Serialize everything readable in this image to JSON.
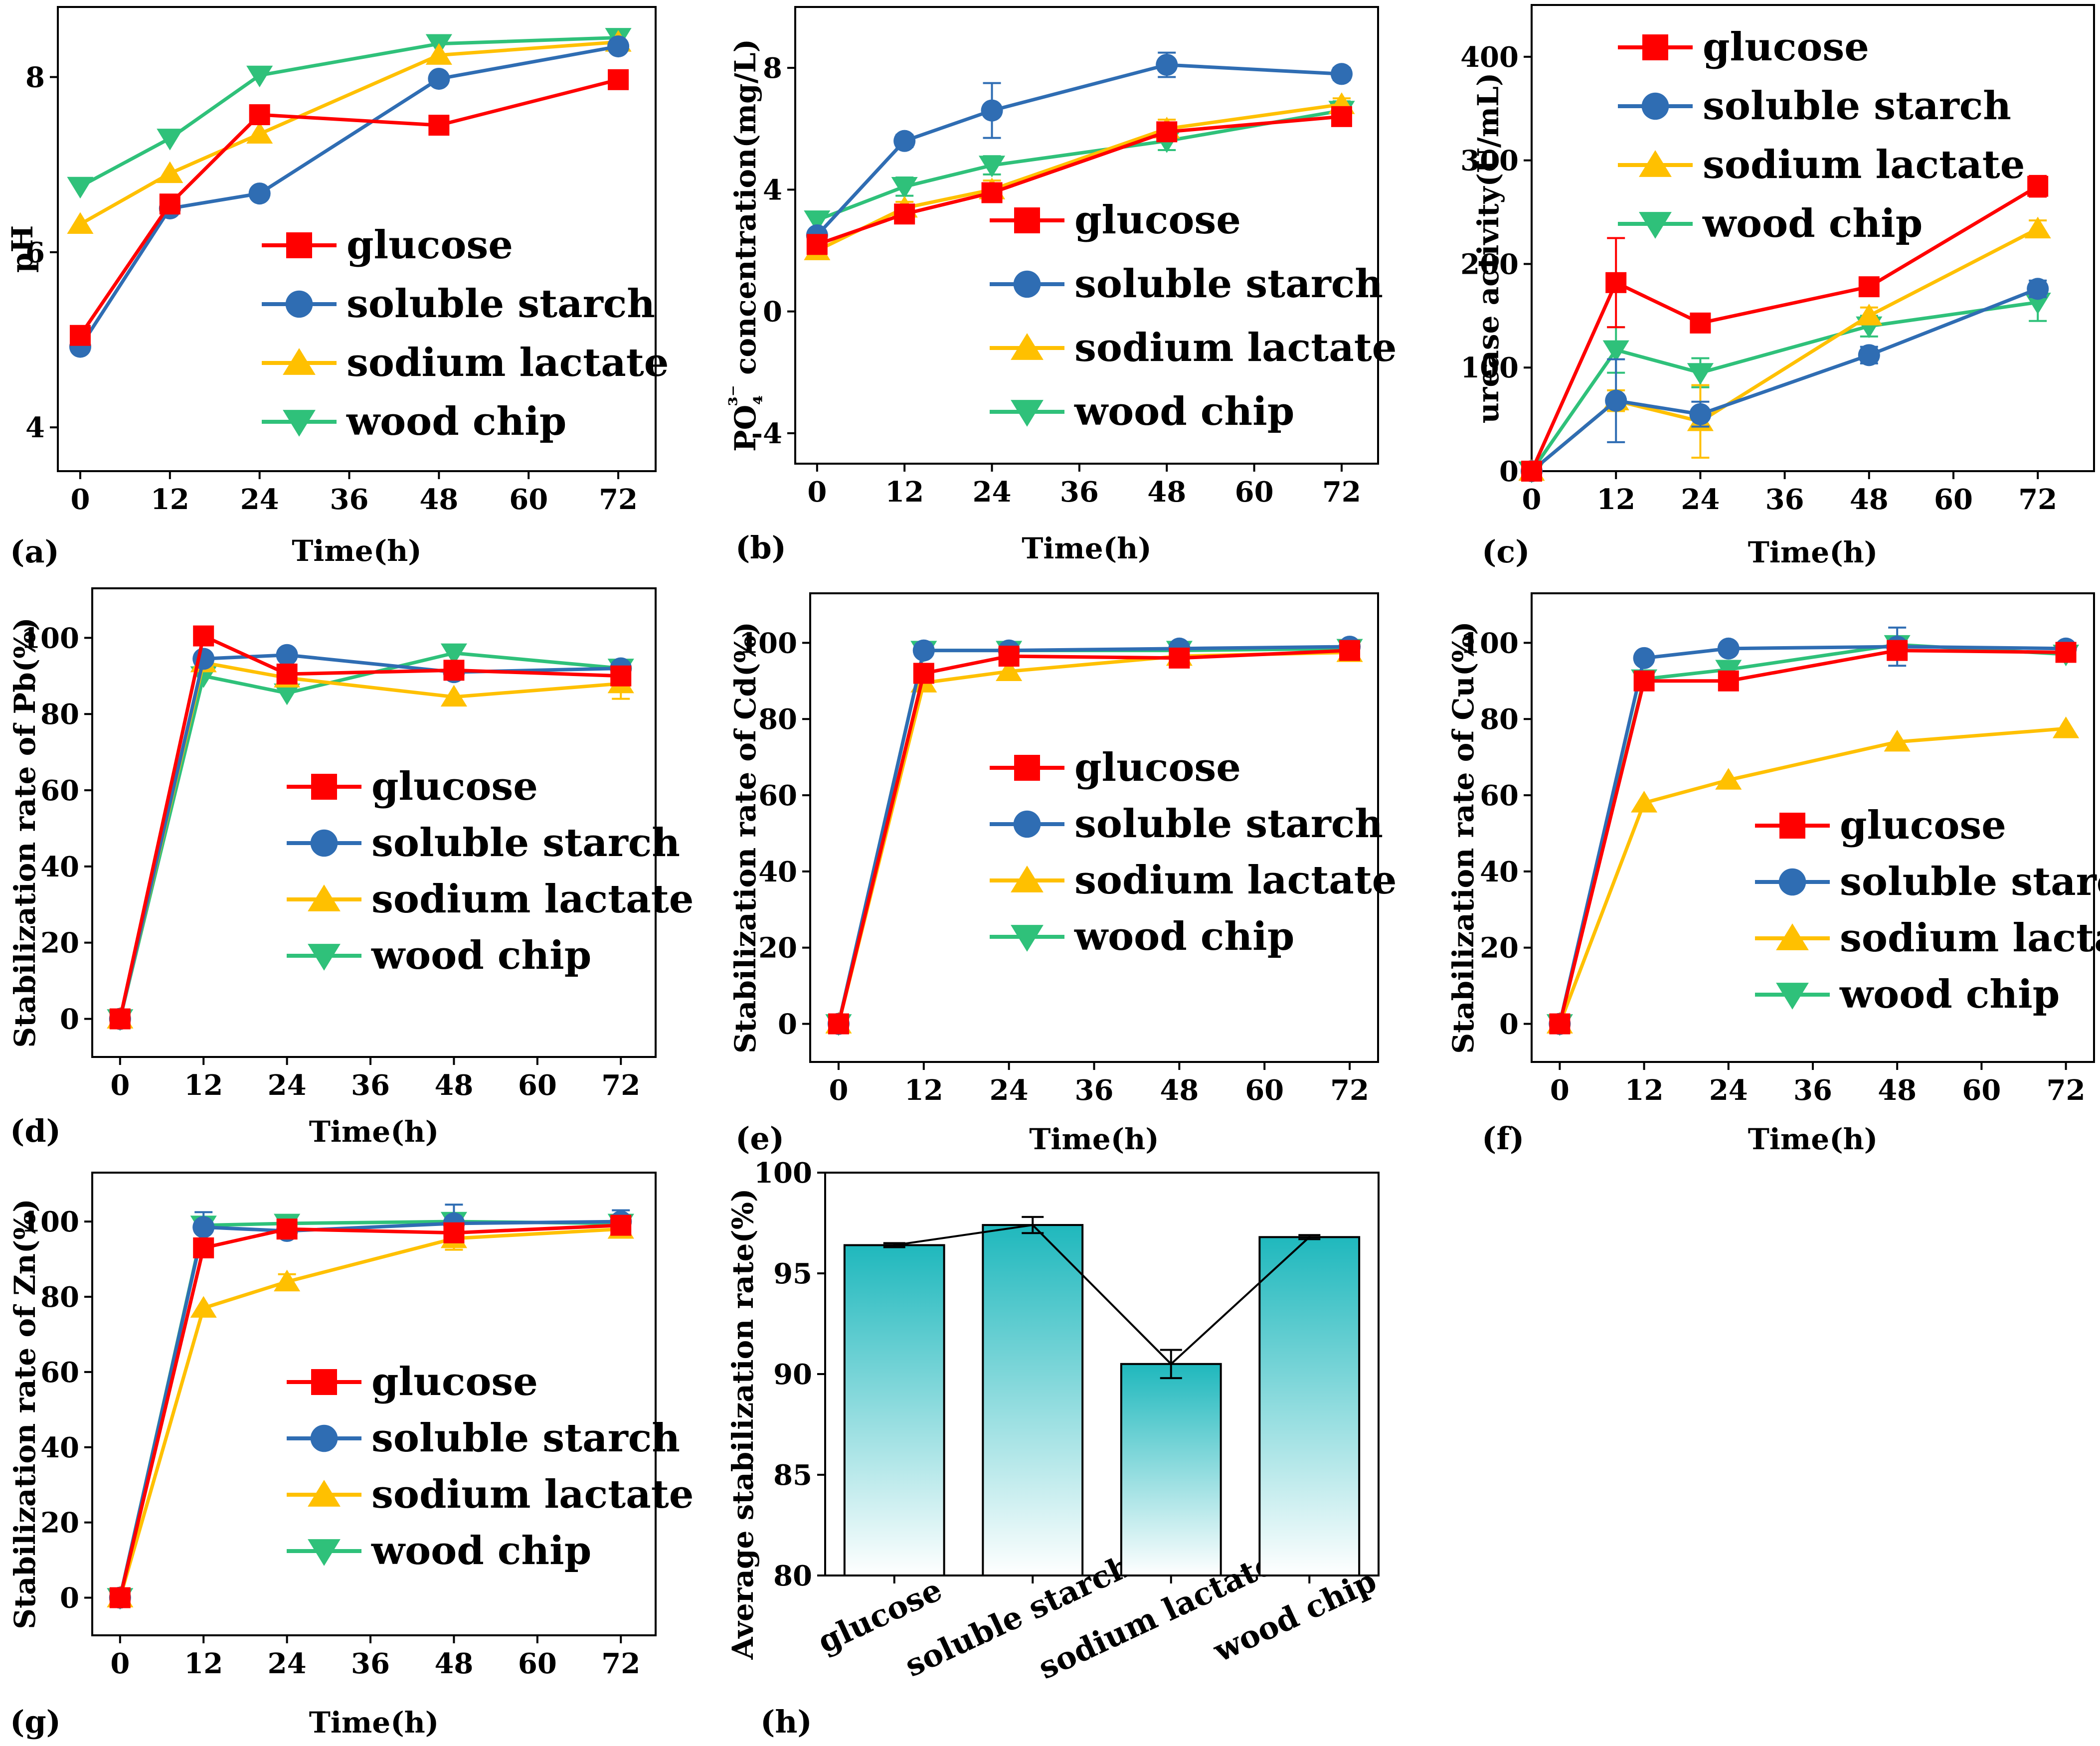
{
  "colors": {
    "glucose": "#ff0000",
    "soluble_starch": "#2f6db3",
    "sodium_lactate": "#ffc000",
    "wood_chip": "#2fc17a",
    "bar_top": "#1fb8bd",
    "axis": "#000000"
  },
  "series_names": [
    "glucose",
    "soluble starch",
    "sodium lactate",
    "wood chip"
  ],
  "chart_data": [
    {
      "id": "a",
      "panel_label": "(a)",
      "type": "line",
      "xlabel": "Time(h)",
      "ylabel": "pH",
      "xlim": [
        -3,
        77
      ],
      "ylim": [
        3.5,
        8.8
      ],
      "xticks": [
        0,
        12,
        24,
        36,
        48,
        60,
        72
      ],
      "yticks": [
        4,
        6,
        8
      ],
      "x": [
        0,
        12,
        24,
        48,
        72
      ],
      "legend": "center-right",
      "series": [
        {
          "name": "glucose",
          "values": [
            5.05,
            6.55,
            7.57,
            7.45,
            7.97
          ],
          "err": [
            0,
            0,
            0,
            0,
            0
          ]
        },
        {
          "name": "soluble starch",
          "values": [
            4.92,
            6.5,
            6.67,
            7.98,
            8.35
          ],
          "err": [
            0,
            0,
            0,
            0,
            0
          ]
        },
        {
          "name": "sodium lactate",
          "values": [
            6.32,
            6.9,
            7.35,
            8.25,
            8.4
          ],
          "err": [
            0,
            0,
            0,
            0,
            0
          ]
        },
        {
          "name": "wood chip",
          "values": [
            6.75,
            7.3,
            8.02,
            8.38,
            8.45
          ],
          "err": [
            0,
            0,
            0,
            0,
            0
          ]
        }
      ]
    },
    {
      "id": "b",
      "panel_label": "(b)",
      "type": "line",
      "xlabel": "Time(h)",
      "ylabel": "PO₄³⁻ concentration(mg/L)",
      "xlim": [
        -3,
        77
      ],
      "ylim": [
        -5,
        10
      ],
      "xticks": [
        0,
        12,
        24,
        36,
        48,
        60,
        72
      ],
      "yticks": [
        -4,
        0,
        4,
        8
      ],
      "x": [
        0,
        12,
        24,
        48,
        72
      ],
      "legend": "center-right",
      "series": [
        {
          "name": "glucose",
          "values": [
            2.2,
            3.2,
            3.9,
            5.9,
            6.4
          ],
          "err": [
            0,
            0.2,
            0.3,
            0.3,
            0.2
          ]
        },
        {
          "name": "soluble starch",
          "values": [
            2.5,
            5.6,
            6.6,
            8.1,
            7.8
          ],
          "err": [
            0,
            0.2,
            0.9,
            0.4,
            0.2
          ]
        },
        {
          "name": "sodium lactate",
          "values": [
            2.0,
            3.4,
            4.0,
            6.0,
            6.8
          ],
          "err": [
            0,
            0.2,
            0.3,
            0.3,
            0.2
          ]
        },
        {
          "name": "wood chip",
          "values": [
            3.0,
            4.1,
            4.8,
            5.6,
            6.6
          ],
          "err": [
            0,
            0.3,
            0.3,
            0.3,
            0.3
          ]
        }
      ]
    },
    {
      "id": "c",
      "panel_label": "(c)",
      "type": "line",
      "xlabel": "Time(h)",
      "ylabel": "urease activity(U/mL)",
      "xlim": [
        0,
        80
      ],
      "ylim": [
        0,
        450
      ],
      "xticks": [
        0,
        12,
        24,
        36,
        48,
        60,
        72
      ],
      "yticks": [
        0,
        100,
        200,
        300,
        400
      ],
      "x": [
        0,
        12,
        24,
        48,
        72
      ],
      "legend": "top-left",
      "series": [
        {
          "name": "glucose",
          "values": [
            0,
            182,
            143,
            178,
            275
          ],
          "err": [
            0,
            43,
            6,
            6,
            10
          ]
        },
        {
          "name": "soluble starch",
          "values": [
            0,
            68,
            55,
            112,
            176
          ],
          "err": [
            0,
            40,
            12,
            8,
            8
          ]
        },
        {
          "name": "sodium lactate",
          "values": [
            0,
            68,
            48,
            150,
            234
          ],
          "err": [
            0,
            10,
            35,
            8,
            8
          ]
        },
        {
          "name": "wood chip",
          "values": [
            0,
            117,
            95,
            140,
            163
          ],
          "err": [
            0,
            22,
            14,
            10,
            18
          ]
        }
      ]
    },
    {
      "id": "d",
      "panel_label": "(d)",
      "type": "line",
      "xlabel": "Time(h)",
      "ylabel": "Stabilization rate of Pb(%)",
      "xlim": [
        -4,
        77
      ],
      "ylim": [
        -10,
        113
      ],
      "xticks": [
        0,
        12,
        24,
        36,
        48,
        60,
        72
      ],
      "yticks": [
        0,
        20,
        40,
        60,
        80,
        100
      ],
      "x": [
        0,
        12,
        24,
        48,
        72
      ],
      "legend": "center",
      "series": [
        {
          "name": "glucose",
          "values": [
            0,
            100.5,
            90.5,
            91.5,
            90
          ],
          "err": [
            0,
            0,
            0,
            0,
            0
          ]
        },
        {
          "name": "soluble starch",
          "values": [
            0,
            94.5,
            95.5,
            91,
            92
          ],
          "err": [
            0,
            0,
            0,
            0,
            0
          ]
        },
        {
          "name": "sodium lactate",
          "values": [
            0,
            93.5,
            89.5,
            84.5,
            88
          ],
          "err": [
            0,
            0,
            0,
            0,
            4
          ]
        },
        {
          "name": "wood chip",
          "values": [
            0,
            90,
            85.5,
            96,
            92
          ],
          "err": [
            0,
            0,
            0,
            0,
            0
          ]
        }
      ]
    },
    {
      "id": "e",
      "panel_label": "(e)",
      "type": "line",
      "xlabel": "Time(h)",
      "ylabel": "Stabilization rate of Cd(%)",
      "xlim": [
        -4,
        76
      ],
      "ylim": [
        -10,
        113
      ],
      "xticks": [
        0,
        12,
        24,
        36,
        48,
        60,
        72
      ],
      "yticks": [
        0,
        20,
        40,
        60,
        80,
        100
      ],
      "x": [
        0,
        12,
        24,
        48,
        72
      ],
      "legend": "center",
      "series": [
        {
          "name": "glucose",
          "values": [
            0,
            92,
            96.5,
            96,
            98
          ],
          "err": [
            0,
            0,
            0,
            0,
            0
          ]
        },
        {
          "name": "soluble starch",
          "values": [
            0,
            98,
            98,
            98.5,
            99
          ],
          "err": [
            0,
            0,
            0,
            0,
            0
          ]
        },
        {
          "name": "sodium lactate",
          "values": [
            0,
            89.5,
            92.5,
            96.5,
            97.5
          ],
          "err": [
            0,
            0,
            0,
            0,
            0
          ]
        },
        {
          "name": "wood chip",
          "values": [
            0,
            98,
            98,
            98,
            98.5
          ],
          "err": [
            0,
            0,
            0,
            0,
            0
          ]
        }
      ]
    },
    {
      "id": "f",
      "panel_label": "(f)",
      "type": "line",
      "xlabel": "Time(h)",
      "ylabel": "Stabilization rate of Cu(%)",
      "xlim": [
        -4,
        76
      ],
      "ylim": [
        -10,
        113
      ],
      "xticks": [
        0,
        12,
        24,
        36,
        48,
        60,
        72
      ],
      "yticks": [
        0,
        20,
        40,
        60,
        80,
        100
      ],
      "x": [
        0,
        12,
        24,
        48,
        72
      ],
      "legend": "bottom-right",
      "series": [
        {
          "name": "glucose",
          "values": [
            0,
            90,
            90,
            98,
            97.5
          ],
          "err": [
            0,
            0,
            0,
            0,
            0
          ]
        },
        {
          "name": "soluble starch",
          "values": [
            0,
            96,
            98.5,
            99,
            98.5
          ],
          "err": [
            0,
            0,
            0,
            5,
            0
          ]
        },
        {
          "name": "sodium lactate",
          "values": [
            0,
            58,
            64,
            74,
            77.5
          ],
          "err": [
            0,
            0,
            0,
            0,
            0
          ]
        },
        {
          "name": "wood chip",
          "values": [
            0,
            90.5,
            93,
            99.5,
            97
          ],
          "err": [
            0,
            0,
            0,
            0,
            0
          ]
        }
      ]
    },
    {
      "id": "g",
      "panel_label": "(g)",
      "type": "line",
      "xlabel": "Time(h)",
      "ylabel": "Stabilization rate of Zn(%)",
      "xlim": [
        -4,
        77
      ],
      "ylim": [
        -10,
        113
      ],
      "xticks": [
        0,
        12,
        24,
        36,
        48,
        60,
        72
      ],
      "yticks": [
        0,
        20,
        40,
        60,
        80,
        100
      ],
      "x": [
        0,
        12,
        24,
        48,
        72
      ],
      "legend": "bottom-center",
      "series": [
        {
          "name": "glucose",
          "values": [
            0,
            93,
            98,
            97,
            99
          ],
          "err": [
            0,
            0,
            0,
            0,
            0
          ]
        },
        {
          "name": "soluble starch",
          "values": [
            0,
            98.5,
            97.5,
            99.5,
            100
          ],
          "err": [
            0,
            4,
            2,
            5,
            3
          ]
        },
        {
          "name": "sodium lactate",
          "values": [
            0,
            77,
            84,
            95.5,
            98
          ],
          "err": [
            0,
            0,
            2,
            3,
            2
          ]
        },
        {
          "name": "wood chip",
          "values": [
            0,
            99,
            99.5,
            100,
            99.5
          ],
          "err": [
            0,
            0,
            0,
            0,
            0
          ]
        }
      ]
    },
    {
      "id": "h",
      "panel_label": "(h)",
      "type": "bar",
      "xlabel": "",
      "ylabel": "Average stabilization rate(%)",
      "ylim": [
        80,
        100
      ],
      "yticks": [
        80,
        85,
        90,
        95,
        100
      ],
      "categories": [
        "glucose",
        "soluble starch",
        "sodium lactate",
        "wood chip"
      ],
      "values": [
        96.4,
        97.4,
        90.5,
        96.8
      ],
      "err": [
        0.1,
        0.4,
        0.7,
        0.1
      ]
    }
  ]
}
